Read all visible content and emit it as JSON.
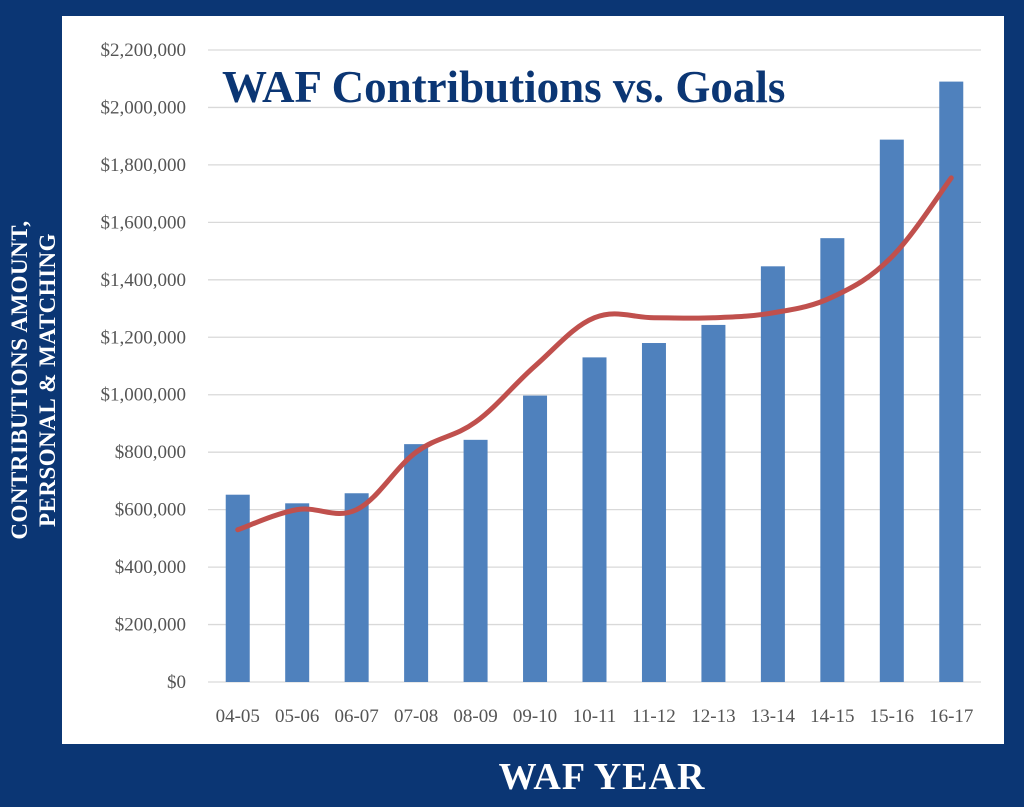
{
  "chart_data": {
    "type": "bar",
    "title": "WAF Contributions vs. Goals",
    "xlabel": "WAF YEAR",
    "ylabel_lines": [
      "CONTRIBUTIONS AMOUNT,",
      "PERSONAL & MATCHING"
    ],
    "categories": [
      "04-05",
      "05-06",
      "06-07",
      "07-08",
      "08-09",
      "09-10",
      "10-11",
      "11-12",
      "12-13",
      "13-14",
      "14-15",
      "15-16",
      "16-17"
    ],
    "series": [
      {
        "kind": "bar",
        "color": "#4f81bd",
        "values": [
          652000,
          622000,
          657000,
          828000,
          843000,
          997000,
          1130000,
          1180000,
          1243000,
          1447000,
          1545000,
          1888000,
          2090000
        ]
      },
      {
        "kind": "line",
        "color": "#c0504d",
        "values": [
          530000,
          600000,
          600000,
          800000,
          905000,
          1100000,
          1268000,
          1268000,
          1268000,
          1285000,
          1340000,
          1480000,
          1755000
        ]
      }
    ],
    "ylim": [
      0,
      2200000
    ],
    "yticks": [
      0,
      200000,
      400000,
      600000,
      800000,
      1000000,
      1200000,
      1400000,
      1600000,
      1800000,
      2000000,
      2200000
    ],
    "ytick_labels": [
      "$0",
      "$200,000",
      "$400,000",
      "$600,000",
      "$800,000",
      "$1,000,000",
      "$1,200,000",
      "$1,400,000",
      "$1,600,000",
      "$1,800,000",
      "$2,000,000",
      "$2,200,000"
    ],
    "grid": true,
    "legend": "none"
  },
  "colors": {
    "frame": "#0b3674",
    "title": "#0b3674",
    "grid": "#d9d9d9"
  }
}
